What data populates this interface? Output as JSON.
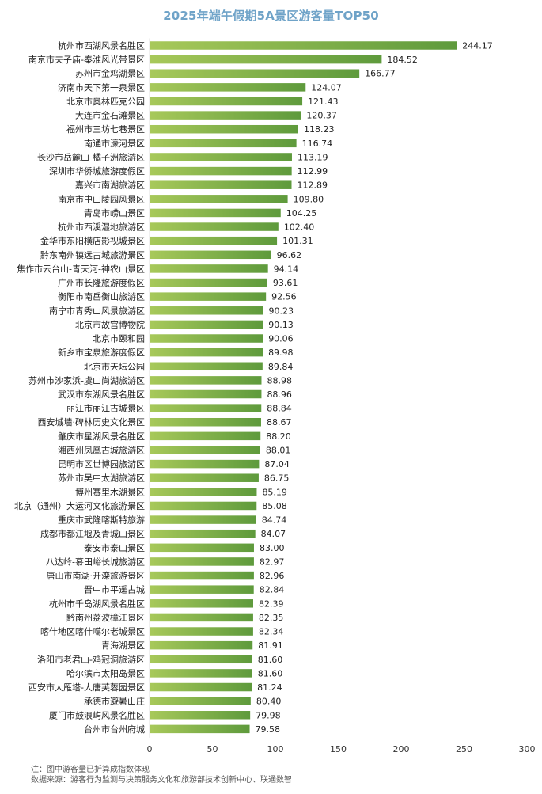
{
  "chart_data": {
    "type": "bar",
    "orientation": "horizontal",
    "title": "2025年端午假期5A景区游客量TOP50",
    "xlim": [
      0,
      300
    ],
    "xticks": [
      "0",
      "50",
      "100",
      "150",
      "200",
      "250",
      "300"
    ],
    "grid": false,
    "colors": {
      "bar_start": "#a8c95a",
      "bar_end": "#5e9a3c",
      "title": "#6fa3c8"
    },
    "categories": [
      "杭州市西湖风景名胜区",
      "南京市夫子庙-秦淮风光带景区",
      "苏州市金鸡湖景区",
      "济南市天下第一泉景区",
      "北京市奥林匹克公园",
      "大连市金石滩景区",
      "福州市三坊七巷景区",
      "南通市濠河景区",
      "长沙市岳麓山-橘子洲旅游区",
      "深圳市华侨城旅游度假区",
      "嘉兴市南湖旅游区",
      "南京市中山陵园风景区",
      "青岛市崂山景区",
      "杭州市西溪湿地旅游区",
      "金华市东阳横店影视城景区",
      "黔东南州镇远古城旅游景区",
      "焦作市云台山-青天河-神农山景区",
      "广州市长隆旅游度假区",
      "衡阳市南岳衡山旅游区",
      "南宁市青秀山风景旅游区",
      "北京市故宫博物院",
      "北京市颐和园",
      "新乡市宝泉旅游度假区",
      "北京市天坛公园",
      "苏州市沙家浜-虞山尚湖旅游区",
      "武汉市东湖风景名胜区",
      "丽江市丽江古城景区",
      "西安城墙·碑林历史文化景区",
      "肇庆市星湖风景名胜区",
      "湘西州凤凰古城旅游区",
      "昆明市区世博园旅游区",
      "苏州市吴中太湖旅游区",
      "博州赛里木湖景区",
      "北京（通州）大运河文化旅游景区",
      "重庆市武隆喀斯特旅游",
      "成都市都江堰及青城山景区",
      "泰安市泰山景区",
      "八达岭-慕田峪长城旅游区",
      "唐山市南湖·开滦旅游景区",
      "晋中市平遥古城",
      "杭州市千岛湖风景名胜区",
      "黔南州荔波樟江景区",
      "喀什地区喀什噶尔老城景区",
      "青海湖景区",
      "洛阳市老君山-鸡冠洞旅游区",
      "哈尔滨市太阳岛景区",
      "西安市大雁塔-大唐芙蓉园景区",
      "承德市避暑山庄",
      "厦门市鼓浪屿风景名胜区",
      "台州市台州府城"
    ],
    "values": [
      244.17,
      184.52,
      166.77,
      124.07,
      121.43,
      120.37,
      118.23,
      116.74,
      113.19,
      112.99,
      112.89,
      109.8,
      104.25,
      102.4,
      101.31,
      96.62,
      94.14,
      93.61,
      92.56,
      90.23,
      90.13,
      90.06,
      89.98,
      89.84,
      88.98,
      88.96,
      88.84,
      88.67,
      88.2,
      88.01,
      87.04,
      86.75,
      85.19,
      85.08,
      84.74,
      84.07,
      83.0,
      82.97,
      82.96,
      82.84,
      82.39,
      82.35,
      82.34,
      81.91,
      81.6,
      81.6,
      81.24,
      80.4,
      79.98,
      79.58
    ],
    "value_labels": [
      "244.17",
      "184.52",
      "166.77",
      "124.07",
      "121.43",
      "120.37",
      "118.23",
      "116.74",
      "113.19",
      "112.99",
      "112.89",
      "109.80",
      "104.25",
      "102.40",
      "101.31",
      "96.62",
      "94.14",
      "93.61",
      "92.56",
      "90.23",
      "90.13",
      "90.06",
      "89.98",
      "89.84",
      "88.98",
      "88.96",
      "88.84",
      "88.67",
      "88.20",
      "88.01",
      "87.04",
      "86.75",
      "85.19",
      "85.08",
      "84.74",
      "84.07",
      "83.00",
      "82.97",
      "82.96",
      "82.84",
      "82.39",
      "82.35",
      "82.34",
      "81.91",
      "81.60",
      "81.60",
      "81.24",
      "80.40",
      "79.98",
      "79.58"
    ]
  },
  "notes": {
    "note": "注：图中游客量已折算成指数体现",
    "source": "数据来源：游客行为监测与决策服务文化和旅游部技术创新中心、联通数智"
  }
}
